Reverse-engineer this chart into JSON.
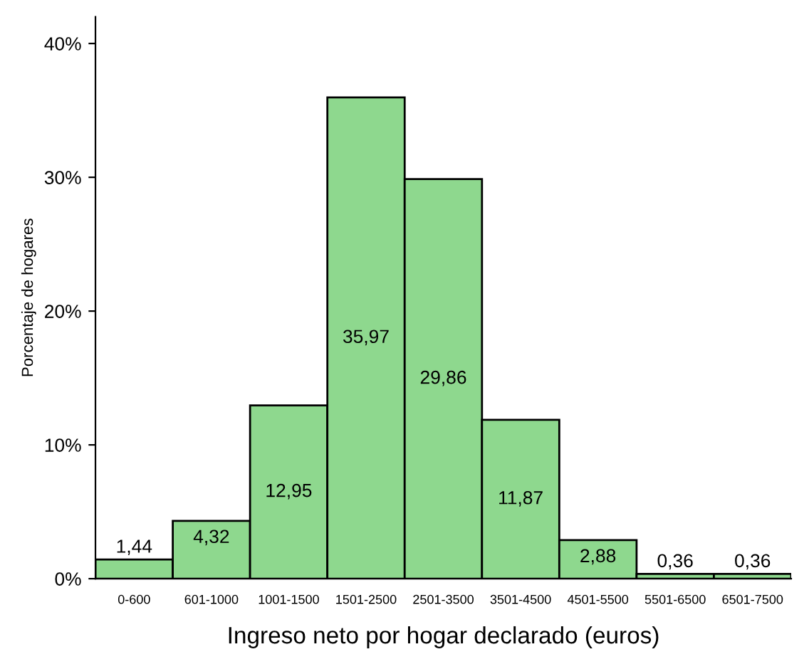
{
  "chart_data": {
    "type": "bar",
    "xlabel": "Ingreso neto por hogar declarado (euros)",
    "ylabel": "Porcentaje de hogares",
    "categories": [
      "0-600",
      "601-1000",
      "1001-1500",
      "1501-2500",
      "2501-3500",
      "3501-4500",
      "4501-5500",
      "5501-6500",
      "6501-7500"
    ],
    "values": [
      1.44,
      4.32,
      12.95,
      35.97,
      29.86,
      11.87,
      2.88,
      0.36,
      0.36
    ],
    "value_labels": [
      "1,44",
      "4,32",
      "12,95",
      "35,97",
      "29,86",
      "11,87",
      "2,88",
      "0,36",
      "0,36"
    ],
    "color": "#8ed88e",
    "ylim": [
      0,
      42
    ],
    "yticks": [
      {
        "value": 0,
        "label": "0%"
      },
      {
        "value": 10,
        "label": "10%"
      },
      {
        "value": 20,
        "label": "20%"
      },
      {
        "value": 30,
        "label": "30%"
      },
      {
        "value": 40,
        "label": "40%"
      }
    ],
    "grid": false,
    "legend": false
  }
}
